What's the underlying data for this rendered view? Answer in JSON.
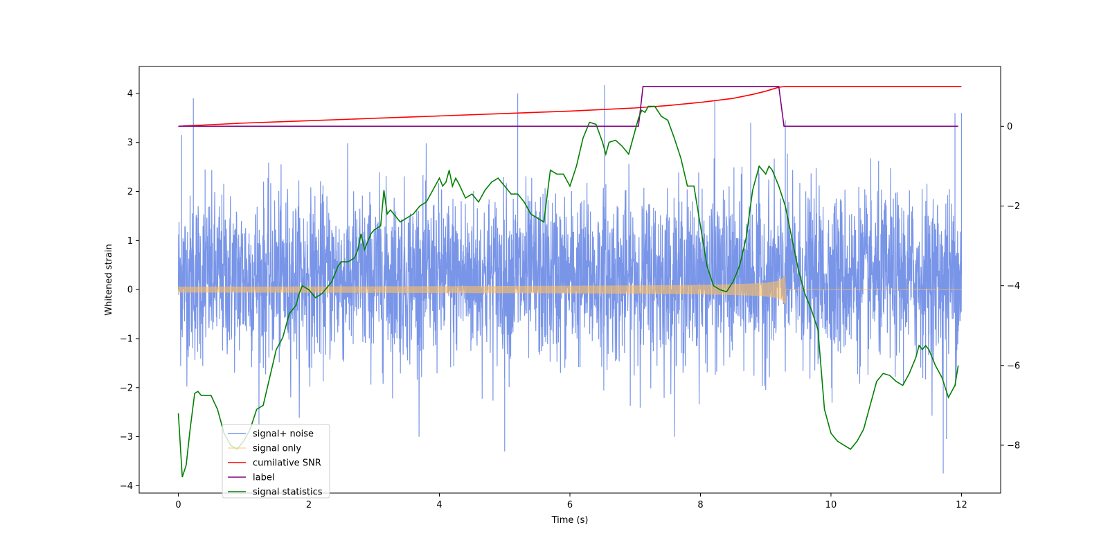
{
  "chart_data": {
    "type": "line",
    "xlabel": "Time (s)",
    "ylabel": "Whitened strain",
    "xlim": [
      -0.6,
      12.6
    ],
    "ylim": [
      -4.15,
      4.55
    ],
    "y2lim": [
      -9.2,
      1.5
    ],
    "xticks": [
      0,
      2,
      4,
      6,
      8,
      10,
      12
    ],
    "yticks": [
      -4,
      -3,
      -2,
      -1,
      0,
      1,
      2,
      3,
      4
    ],
    "y2ticks": [
      -8,
      -6,
      -4,
      -2,
      0
    ],
    "legend_position": "lower-left",
    "colors": {
      "noise": "#6a8ae6",
      "signal": "#ffbf60",
      "snr": "#ff0000",
      "label": "#800080",
      "stats": "#008000"
    },
    "legend": [
      {
        "key": "noise",
        "label": "signal+ noise"
      },
      {
        "key": "signal",
        "label": "signal only"
      },
      {
        "key": "snr",
        "label": "cumilative SNR"
      },
      {
        "key": "label",
        "label": "label"
      },
      {
        "key": "stats",
        "label": "signal statistics"
      }
    ],
    "series": [
      {
        "key": "noise",
        "name": "signal+ noise",
        "axis": "left",
        "description_x_range": [
          0,
          12
        ],
        "typical_range": [
          -2.5,
          3.0
        ],
        "peaks": [
          [
            0.05,
            3.15
          ],
          [
            0.23,
            3.9
          ],
          [
            0.41,
            2.45
          ],
          [
            5.2,
            4.0
          ],
          [
            6.53,
            4.17
          ],
          [
            8.22,
            3.85
          ],
          [
            8.77,
            3.4
          ],
          [
            9.3,
            3.45
          ],
          [
            11.72,
            -3.75
          ],
          [
            12.0,
            3.6
          ],
          [
            11.9,
            3.6
          ],
          [
            11.77,
            -3.05
          ],
          [
            10.05,
            1.7
          ],
          [
            5.0,
            -3.3
          ]
        ]
      },
      {
        "key": "signal",
        "name": "signal only",
        "axis": "left",
        "chirp": {
          "t_start": 0,
          "t_merge": 9.3,
          "amp_start": 0.06,
          "amp_peak": 1.0,
          "amp_end": 0.0,
          "t_end": 12
        }
      },
      {
        "key": "snr",
        "name": "cumilative SNR",
        "axis": "right",
        "x": [
          0,
          1,
          2,
          3,
          4,
          5,
          6,
          7,
          7.5,
          8,
          8.5,
          8.8,
          9.0,
          9.1,
          9.2,
          9.3,
          10,
          11,
          12
        ],
        "y": [
          0.0,
          0.08,
          0.14,
          0.2,
          0.26,
          0.32,
          0.38,
          0.46,
          0.52,
          0.6,
          0.7,
          0.8,
          0.88,
          0.93,
          0.98,
          1.0,
          1.0,
          1.0,
          1.0
        ]
      },
      {
        "key": "label",
        "name": "label",
        "axis": "right",
        "x": [
          0,
          7.05,
          7.12,
          9.2,
          9.28,
          11.95
        ],
        "y": [
          0,
          0,
          1,
          1,
          0,
          0
        ]
      },
      {
        "key": "stats",
        "name": "signal statistics",
        "axis": "right",
        "x": [
          0.0,
          0.06,
          0.12,
          0.18,
          0.25,
          0.3,
          0.35,
          0.42,
          0.5,
          0.6,
          0.65,
          0.7,
          0.8,
          0.9,
          1.0,
          1.1,
          1.2,
          1.3,
          1.4,
          1.5,
          1.6,
          1.7,
          1.8,
          1.85,
          1.9,
          2.0,
          2.1,
          2.2,
          2.3,
          2.35,
          2.4,
          2.45,
          2.5,
          2.6,
          2.7,
          2.75,
          2.8,
          2.85,
          2.9,
          2.95,
          3.0,
          3.1,
          3.15,
          3.2,
          3.25,
          3.3,
          3.4,
          3.5,
          3.6,
          3.7,
          3.8,
          3.9,
          4.0,
          4.05,
          4.1,
          4.15,
          4.2,
          4.25,
          4.3,
          4.4,
          4.5,
          4.6,
          4.7,
          4.8,
          4.9,
          5.0,
          5.1,
          5.2,
          5.3,
          5.4,
          5.5,
          5.6,
          5.7,
          5.8,
          5.9,
          6.0,
          6.1,
          6.2,
          6.3,
          6.4,
          6.5,
          6.55,
          6.6,
          6.7,
          6.8,
          6.9,
          7.0,
          7.05,
          7.1,
          7.15,
          7.2,
          7.3,
          7.4,
          7.5,
          7.6,
          7.7,
          7.8,
          7.9,
          8.0,
          8.05,
          8.1,
          8.2,
          8.3,
          8.4,
          8.5,
          8.6,
          8.7,
          8.8,
          8.9,
          9.0,
          9.05,
          9.1,
          9.15,
          9.2,
          9.3,
          9.4,
          9.5,
          9.6,
          9.7,
          9.8,
          9.9,
          10.0,
          10.1,
          10.2,
          10.3,
          10.4,
          10.5,
          10.6,
          10.7,
          10.8,
          10.9,
          11.0,
          11.1,
          11.2,
          11.3,
          11.35,
          11.4,
          11.45,
          11.5,
          11.6,
          11.7,
          11.8,
          11.9,
          11.95
        ],
        "y": [
          -7.2,
          -8.8,
          -8.5,
          -7.6,
          -6.7,
          -6.65,
          -6.75,
          -6.75,
          -6.75,
          -7.1,
          -7.4,
          -7.7,
          -8.0,
          -8.1,
          -7.9,
          -7.6,
          -7.1,
          -7.0,
          -6.3,
          -5.6,
          -5.3,
          -4.7,
          -4.5,
          -4.2,
          -4.0,
          -4.1,
          -4.3,
          -4.2,
          -4.0,
          -3.9,
          -3.7,
          -3.5,
          -3.4,
          -3.4,
          -3.3,
          -3.1,
          -2.7,
          -3.1,
          -2.9,
          -2.7,
          -2.6,
          -2.5,
          -1.6,
          -2.2,
          -2.1,
          -2.2,
          -2.4,
          -2.3,
          -2.2,
          -2.0,
          -1.9,
          -1.6,
          -1.3,
          -1.5,
          -1.4,
          -1.1,
          -1.5,
          -1.3,
          -1.45,
          -1.8,
          -1.7,
          -1.9,
          -1.6,
          -1.4,
          -1.3,
          -1.5,
          -1.7,
          -1.7,
          -1.9,
          -2.2,
          -2.3,
          -2.4,
          -1.1,
          -1.2,
          -1.2,
          -1.5,
          -1.0,
          -0.3,
          0.1,
          0.05,
          -0.4,
          -0.7,
          -0.4,
          -0.35,
          -0.5,
          -0.7,
          -0.1,
          0.2,
          0.4,
          0.35,
          0.5,
          0.5,
          0.25,
          0.15,
          -0.3,
          -0.8,
          -1.5,
          -1.5,
          -2.5,
          -3.0,
          -3.5,
          -4.0,
          -4.1,
          -4.15,
          -3.9,
          -3.5,
          -2.8,
          -1.6,
          -1.0,
          -1.2,
          -1.0,
          -1.1,
          -1.3,
          -1.5,
          -2.0,
          -2.8,
          -3.6,
          -4.2,
          -4.6,
          -5.1,
          -7.1,
          -7.7,
          -7.9,
          -8.0,
          -8.1,
          -7.9,
          -7.6,
          -7.0,
          -6.4,
          -6.2,
          -6.25,
          -6.4,
          -6.5,
          -6.2,
          -5.8,
          -5.5,
          -5.6,
          -5.5,
          -5.6,
          -6.0,
          -6.3,
          -6.8,
          -6.5,
          -6.0
        ]
      }
    ]
  }
}
